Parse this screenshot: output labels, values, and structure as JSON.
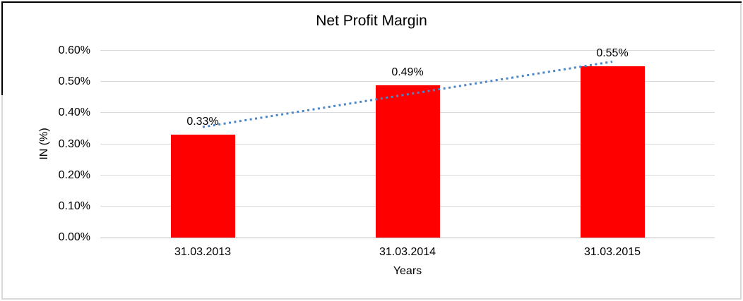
{
  "frame": {
    "background": "#FFFFFF",
    "border_color": "#D9D9D9",
    "accent_border_color": "#000000"
  },
  "chart_data": {
    "type": "bar",
    "title": "Net Profit Margin",
    "xlabel": "Years",
    "ylabel": "IN (%)",
    "categories": [
      "31.03.2013",
      "31.03.2014",
      "31.03.2015"
    ],
    "values": [
      0.33,
      0.49,
      0.55
    ],
    "data_labels": [
      "0.33%",
      "0.49%",
      "0.55%"
    ],
    "yticks": [
      "0.00%",
      "0.10%",
      "0.20%",
      "0.30%",
      "0.40%",
      "0.50%",
      "0.60%"
    ],
    "ylim": [
      0,
      0.6
    ],
    "grid": true,
    "legend": "none",
    "bar_color": "#FF0000",
    "gridline_color": "#D9D9D9",
    "axis_line_color": "#C0C0C0",
    "text_color": "#000000",
    "trendline": {
      "type": "linear",
      "style": "dotted",
      "color": "#4A86C8",
      "start_value": 0.355,
      "end_value": 0.565
    }
  }
}
